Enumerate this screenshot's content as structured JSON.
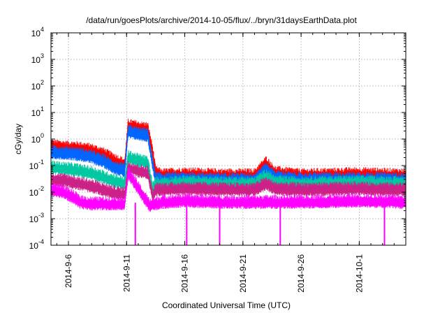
{
  "chart_data": {
    "type": "line",
    "title": "/data/run/goesPlots/archive/2014-10-05/flux/../bryn/31daysEarthData.plot",
    "xlabel": "Coordinated Universal Time (UTC)",
    "ylabel": "cGy/day",
    "yscale": "log",
    "ylim": [
      0.0001,
      10000
    ],
    "xlim": [
      "2014-09-04T12:00",
      "2014-10-05T00:00"
    ],
    "y_ticks": [
      {
        "value": 0.0001,
        "base": "10",
        "exp": "-4"
      },
      {
        "value": 0.001,
        "base": "10",
        "exp": "-3"
      },
      {
        "value": 0.01,
        "base": "10",
        "exp": "-2"
      },
      {
        "value": 0.1,
        "base": "10",
        "exp": "-1"
      },
      {
        "value": 1,
        "base": "10",
        "exp": "0"
      },
      {
        "value": 10,
        "base": "10",
        "exp": "1"
      },
      {
        "value": 100,
        "base": "10",
        "exp": "2"
      },
      {
        "value": 1000,
        "base": "10",
        "exp": "3"
      },
      {
        "value": 10000,
        "base": "10",
        "exp": "4"
      }
    ],
    "x_ticks": [
      {
        "date": "2014-09-06",
        "label": "2014-9-6"
      },
      {
        "date": "2014-09-11",
        "label": "2014-9-11"
      },
      {
        "date": "2014-09-16",
        "label": "2014-9-16"
      },
      {
        "date": "2014-09-21",
        "label": "2014-9-21"
      },
      {
        "date": "2014-09-26",
        "label": "2014-9-26"
      },
      {
        "date": "2014-10-01",
        "label": "2014-10-1"
      }
    ],
    "grid": true,
    "series": [
      {
        "color": "#ff0000",
        "points": [
          [
            "2014-09-04T12:00",
            0.5
          ],
          [
            "2014-09-06T00:00",
            0.45
          ],
          [
            "2014-09-07T00:00",
            0.42
          ],
          [
            "2014-09-08T00:00",
            0.35
          ],
          [
            "2014-09-09T00:00",
            0.25
          ],
          [
            "2014-09-10T00:00",
            0.15
          ],
          [
            "2014-09-10T20:00",
            0.1
          ],
          [
            "2014-09-11T03:00",
            3.0
          ],
          [
            "2014-09-12T00:00",
            2.5
          ],
          [
            "2014-09-12T20:00",
            2.2
          ],
          [
            "2014-09-13T06:00",
            0.3
          ],
          [
            "2014-09-13T12:00",
            0.05
          ],
          [
            "2014-09-14T00:00",
            0.04
          ],
          [
            "2014-09-16T00:00",
            0.045
          ],
          [
            "2014-09-19T00:00",
            0.04
          ],
          [
            "2014-09-22T00:00",
            0.04
          ],
          [
            "2014-09-23T00:00",
            0.12
          ],
          [
            "2014-09-23T18:00",
            0.05
          ],
          [
            "2014-09-26T00:00",
            0.04
          ],
          [
            "2014-10-01T00:00",
            0.045
          ],
          [
            "2014-10-05T00:00",
            0.04
          ]
        ]
      },
      {
        "color": "#0066ff",
        "points": [
          [
            "2014-09-04T12:00",
            0.3
          ],
          [
            "2014-09-06T00:00",
            0.28
          ],
          [
            "2014-09-07T00:00",
            0.25
          ],
          [
            "2014-09-08T00:00",
            0.2
          ],
          [
            "2014-09-09T00:00",
            0.14
          ],
          [
            "2014-09-10T00:00",
            0.08
          ],
          [
            "2014-09-10T20:00",
            0.06
          ],
          [
            "2014-09-11T03:00",
            1.8
          ],
          [
            "2014-09-12T00:00",
            1.5
          ],
          [
            "2014-09-12T20:00",
            1.3
          ],
          [
            "2014-09-13T06:00",
            0.1
          ],
          [
            "2014-09-13T12:00",
            0.03
          ],
          [
            "2014-09-14T00:00",
            0.028
          ],
          [
            "2014-09-16T00:00",
            0.03
          ],
          [
            "2014-09-19T00:00",
            0.028
          ],
          [
            "2014-09-22T00:00",
            0.028
          ],
          [
            "2014-09-23T00:00",
            0.07
          ],
          [
            "2014-09-23T18:00",
            0.035
          ],
          [
            "2014-09-26T00:00",
            0.028
          ],
          [
            "2014-10-01T00:00",
            0.03
          ],
          [
            "2014-10-05T00:00",
            0.028
          ]
        ]
      },
      {
        "color": "#00c8a0",
        "points": [
          [
            "2014-09-04T12:00",
            0.08
          ],
          [
            "2014-09-06T00:00",
            0.07
          ],
          [
            "2014-09-07T00:00",
            0.06
          ],
          [
            "2014-09-08T00:00",
            0.05
          ],
          [
            "2014-09-09T00:00",
            0.035
          ],
          [
            "2014-09-10T00:00",
            0.025
          ],
          [
            "2014-09-10T20:00",
            0.02
          ],
          [
            "2014-09-11T03:00",
            0.2
          ],
          [
            "2014-09-12T00:00",
            0.15
          ],
          [
            "2014-09-12T20:00",
            0.12
          ],
          [
            "2014-09-13T06:00",
            0.012
          ],
          [
            "2014-09-13T12:00",
            0.02
          ],
          [
            "2014-09-14T00:00",
            0.02
          ],
          [
            "2014-09-16T00:00",
            0.022
          ],
          [
            "2014-09-19T00:00",
            0.02
          ],
          [
            "2014-09-22T00:00",
            0.02
          ],
          [
            "2014-09-23T00:00",
            0.04
          ],
          [
            "2014-09-23T18:00",
            0.022
          ],
          [
            "2014-09-26T00:00",
            0.02
          ],
          [
            "2014-10-01T00:00",
            0.022
          ],
          [
            "2014-10-05T00:00",
            0.02
          ]
        ]
      },
      {
        "color": "#cc2288",
        "points": [
          [
            "2014-09-04T12:00",
            0.03
          ],
          [
            "2014-09-06T00:00",
            0.025
          ],
          [
            "2014-09-07T00:00",
            0.02
          ],
          [
            "2014-09-08T00:00",
            0.016
          ],
          [
            "2014-09-09T00:00",
            0.012
          ],
          [
            "2014-09-10T00:00",
            0.009
          ],
          [
            "2014-09-10T20:00",
            0.008
          ],
          [
            "2014-09-11T03:00",
            0.08
          ],
          [
            "2014-09-12T00:00",
            0.06
          ],
          [
            "2014-09-12T20:00",
            0.05
          ],
          [
            "2014-09-13T06:00",
            0.006
          ],
          [
            "2014-09-13T12:00",
            0.012
          ],
          [
            "2014-09-14T00:00",
            0.012
          ],
          [
            "2014-09-16T00:00",
            0.013
          ],
          [
            "2014-09-19T00:00",
            0.012
          ],
          [
            "2014-09-22T00:00",
            0.012
          ],
          [
            "2014-09-23T00:00",
            0.02
          ],
          [
            "2014-09-23T18:00",
            0.013
          ],
          [
            "2014-09-26T00:00",
            0.012
          ],
          [
            "2014-10-01T00:00",
            0.013
          ],
          [
            "2014-10-05T00:00",
            0.012
          ]
        ]
      },
      {
        "color": "#ff00ff",
        "points": [
          [
            "2014-09-04T12:00",
            0.012
          ],
          [
            "2014-09-05T12:00",
            0.01
          ],
          [
            "2014-09-06T12:00",
            0.006
          ],
          [
            "2014-09-07T00:00",
            0.004
          ],
          [
            "2014-09-08T00:00",
            0.0035
          ],
          [
            "2014-09-09T00:00",
            0.0035
          ],
          [
            "2014-09-10T00:00",
            0.0035
          ],
          [
            "2014-09-10T20:00",
            0.0035
          ],
          [
            "2014-09-11T03:00",
            0.05
          ],
          [
            "2014-09-11T18:00",
            0.02
          ],
          [
            "2014-09-12T12:00",
            0.006
          ],
          [
            "2014-09-13T00:00",
            0.003
          ],
          [
            "2014-09-14T00:00",
            0.004
          ],
          [
            "2014-09-16T00:00",
            0.0045
          ],
          [
            "2014-09-19T00:00",
            0.004
          ],
          [
            "2014-09-22T00:00",
            0.004
          ],
          [
            "2014-09-26T00:00",
            0.004
          ],
          [
            "2014-10-01T00:00",
            0.0045
          ],
          [
            "2014-10-05T00:00",
            0.004
          ]
        ]
      }
    ],
    "dropouts": {
      "color": "#ff00ff",
      "dates": [
        "2014-09-11T18:00",
        "2014-09-16T04:00",
        "2014-09-19T00:00",
        "2014-09-24T05:00",
        "2014-10-03T04:00"
      ]
    }
  }
}
